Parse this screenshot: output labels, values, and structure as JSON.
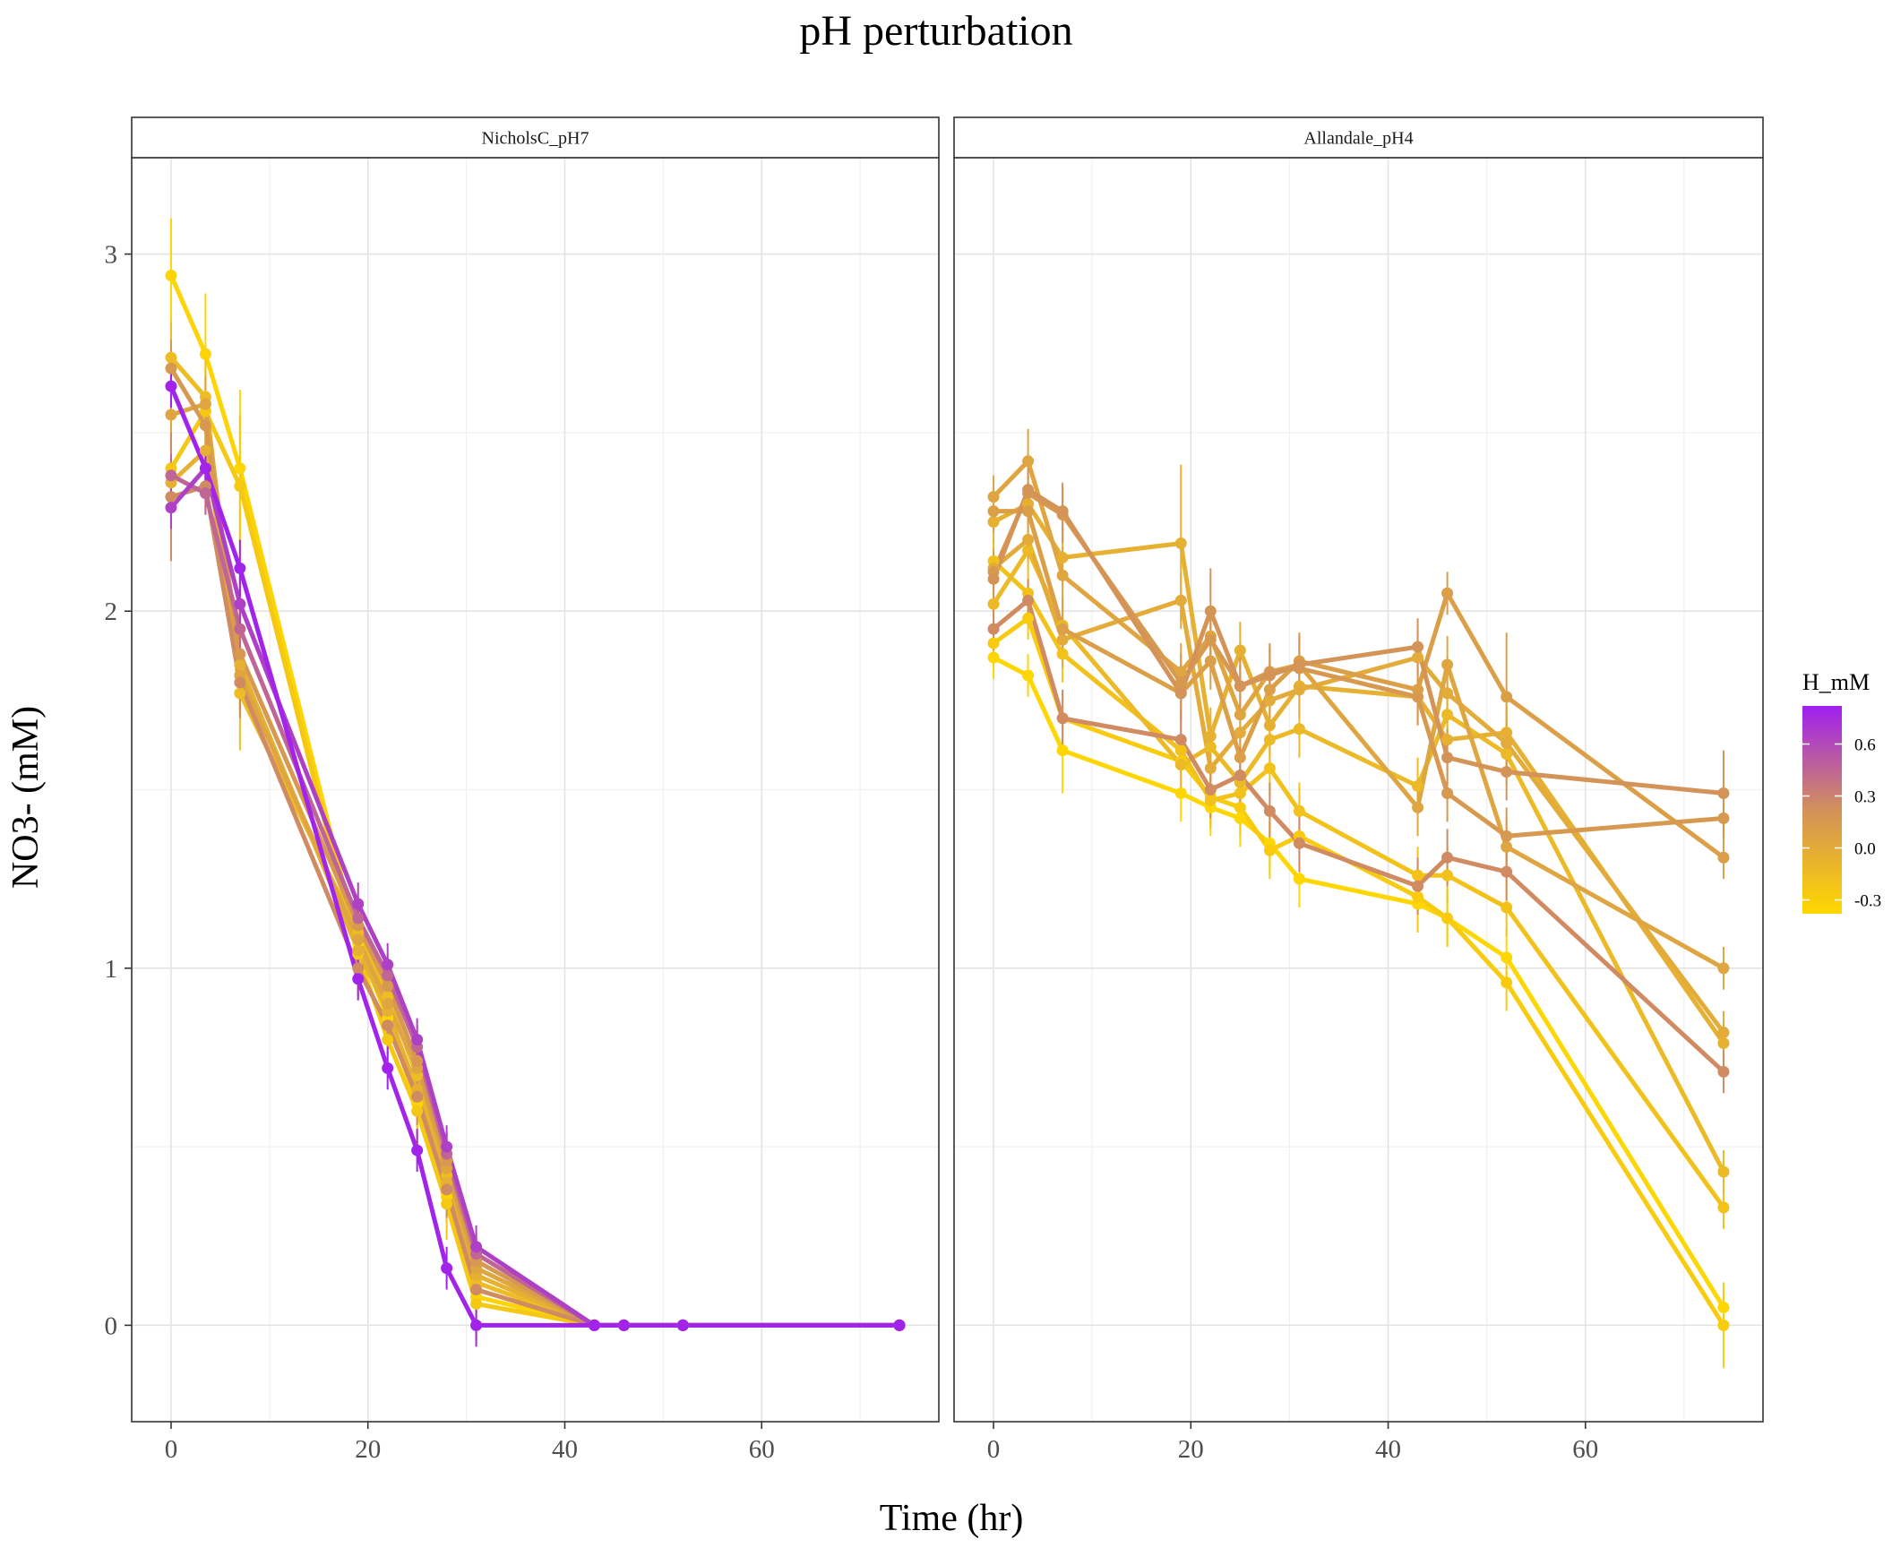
{
  "chart_data": {
    "type": "line",
    "title": "pH perturbation",
    "xlabel": "Time (hr)",
    "ylabel": "NO3- (mM)",
    "xlim": [
      -4,
      78
    ],
    "ylim": [
      -0.27,
      3.27
    ],
    "x_ticks": [
      0,
      20,
      40,
      60
    ],
    "y_ticks": [
      0,
      1,
      2,
      3
    ],
    "grid": true,
    "legend": {
      "title": "H_mM",
      "position": "right",
      "type": "colorbar",
      "range": [
        -0.38,
        0.82
      ],
      "ticks": [
        -0.3,
        0.0,
        0.3,
        0.6
      ],
      "tick_labels": [
        "-0.3",
        "0.0",
        "0.3",
        "0.6"
      ],
      "low_color": "#FFD700",
      "mid_color": "#D2915A",
      "high_color": "#A020F0"
    },
    "facets": [
      {
        "name": "NicholsC_pH7",
        "series": [
          {
            "h": -0.35,
            "x": [
              0,
              3.5,
              7,
              19,
              22,
              25,
              28,
              31,
              43,
              46,
              52,
              74
            ],
            "y": [
              2.94,
              2.72,
              2.4,
              1.07,
              0.86,
              0.62,
              0.36,
              0.08,
              0,
              0,
              0,
              0
            ],
            "err": [
              0.16,
              0.17,
              0.22,
              0.1,
              0.1,
              0.12,
              0.12,
              0.12,
              0,
              0,
              0,
              0
            ]
          },
          {
            "h": -0.25,
            "x": [
              0,
              3.5,
              7,
              19,
              22,
              25,
              28,
              31,
              43,
              46,
              52,
              74
            ],
            "y": [
              2.4,
              2.56,
              2.35,
              1.04,
              0.8,
              0.6,
              0.34,
              0.06,
              0,
              0,
              0,
              0
            ],
            "err": [
              0.1,
              0.12,
              0.2,
              0.1,
              0.1,
              0.1,
              0.1,
              0.1,
              0,
              0,
              0,
              0
            ]
          },
          {
            "h": -0.15,
            "x": [
              0,
              3.5,
              7,
              19,
              22,
              25,
              28,
              31,
              43,
              46,
              52,
              74
            ],
            "y": [
              2.71,
              2.6,
              1.77,
              1.1,
              0.92,
              0.7,
              0.42,
              0.12,
              0,
              0,
              0,
              0
            ],
            "err": [
              0.1,
              0.12,
              0.16,
              0.1,
              0.1,
              0.1,
              0.1,
              0.1,
              0,
              0,
              0,
              0
            ]
          },
          {
            "h": -0.05,
            "x": [
              0,
              3.5,
              7,
              19,
              22,
              25,
              28,
              31,
              43,
              46,
              52,
              74
            ],
            "y": [
              2.36,
              2.45,
              1.85,
              1.05,
              0.88,
              0.66,
              0.4,
              0.14,
              0,
              0,
              0,
              0
            ],
            "err": [
              0.08,
              0.08,
              0.1,
              0.08,
              0.08,
              0.08,
              0.08,
              0.08,
              0,
              0,
              0,
              0
            ]
          },
          {
            "h": 0.05,
            "x": [
              0,
              3.5,
              7,
              19,
              22,
              25,
              28,
              31,
              43,
              46,
              52,
              74
            ],
            "y": [
              2.55,
              2.58,
              1.82,
              1.08,
              0.9,
              0.72,
              0.44,
              0.16,
              0,
              0,
              0,
              0
            ],
            "err": [
              0.08,
              0.08,
              0.1,
              0.08,
              0.08,
              0.08,
              0.08,
              0.08,
              0,
              0,
              0,
              0
            ]
          },
          {
            "h": 0.15,
            "x": [
              0,
              3.5,
              7,
              19,
              22,
              25,
              28,
              31,
              43,
              46,
              52,
              74
            ],
            "y": [
              2.68,
              2.52,
              1.88,
              1.12,
              0.95,
              0.74,
              0.46,
              0.18,
              0,
              0,
              0,
              0
            ],
            "err": [
              0.08,
              0.08,
              0.1,
              0.08,
              0.08,
              0.08,
              0.08,
              0.08,
              0,
              0,
              0,
              0
            ]
          },
          {
            "h": 0.25,
            "x": [
              0,
              3.5,
              7,
              19,
              22,
              25,
              28,
              31,
              43,
              46,
              52,
              74
            ],
            "y": [
              2.32,
              2.35,
              1.8,
              1.0,
              0.84,
              0.64,
              0.38,
              0.1,
              0,
              0,
              0,
              0
            ],
            "err": [
              0.18,
              0.08,
              0.1,
              0.08,
              0.08,
              0.08,
              0.08,
              0.08,
              0,
              0,
              0,
              0
            ]
          },
          {
            "h": 0.45,
            "x": [
              0,
              3.5,
              7,
              19,
              22,
              25,
              28,
              31,
              43,
              46,
              52,
              74
            ],
            "y": [
              2.38,
              2.33,
              1.95,
              1.14,
              0.98,
              0.78,
              0.48,
              0.2,
              0,
              0,
              0,
              0
            ],
            "err": [
              0.06,
              0.06,
              0.08,
              0.06,
              0.06,
              0.06,
              0.06,
              0.06,
              0,
              0,
              0,
              0
            ]
          },
          {
            "h": 0.65,
            "x": [
              0,
              3.5,
              7,
              19,
              22,
              25,
              28,
              31,
              43,
              46,
              52,
              74
            ],
            "y": [
              2.29,
              2.4,
              2.02,
              1.18,
              1.01,
              0.8,
              0.5,
              0.22,
              0,
              0,
              0,
              0
            ],
            "err": [
              0.06,
              0.06,
              0.08,
              0.06,
              0.06,
              0.06,
              0.06,
              0.06,
              0,
              0,
              0,
              0
            ]
          },
          {
            "h": 0.8,
            "x": [
              0,
              3.5,
              7,
              19,
              22,
              25,
              28,
              31,
              43,
              46,
              52,
              74
            ],
            "y": [
              2.63,
              2.4,
              2.12,
              0.97,
              0.72,
              0.49,
              0.16,
              0.0,
              0,
              0,
              0,
              0
            ],
            "err": [
              0.06,
              0.06,
              0.08,
              0.06,
              0.06,
              0.06,
              0.06,
              0.06,
              0,
              0,
              0,
              0
            ]
          }
        ]
      },
      {
        "name": "Allandale_pH4",
        "series": [
          {
            "h": -0.37,
            "x": [
              0,
              3.5,
              7,
              19,
              22,
              25,
              28,
              31,
              43,
              46,
              52,
              74
            ],
            "y": [
              1.87,
              1.82,
              1.61,
              1.49,
              1.45,
              1.42,
              1.35,
              1.25,
              1.18,
              1.14,
              1.03,
              0.05
            ],
            "err": [
              0.06,
              0.06,
              0.12,
              0.08,
              0.08,
              0.08,
              0.08,
              0.08,
              0.08,
              0.08,
              0.08,
              0.04
            ]
          },
          {
            "h": -0.28,
            "x": [
              0,
              3.5,
              7,
              19,
              22,
              25,
              28,
              31,
              43,
              46,
              52,
              74
            ],
            "y": [
              1.91,
              1.98,
              1.7,
              1.58,
              1.48,
              1.45,
              1.33,
              1.37,
              1.2,
              1.14,
              0.96,
              0.0
            ],
            "err": [
              0.06,
              0.06,
              0.08,
              0.08,
              0.08,
              0.08,
              0.08,
              0.08,
              0.1,
              0.08,
              0.08,
              0.12
            ]
          },
          {
            "h": -0.2,
            "x": [
              0,
              3.5,
              7,
              19,
              22,
              25,
              28,
              31,
              43,
              46,
              52,
              74
            ],
            "y": [
              2.14,
              2.05,
              1.88,
              1.61,
              1.47,
              1.49,
              1.56,
              1.44,
              1.26,
              1.26,
              1.17,
              0.33
            ],
            "err": [
              0.06,
              0.06,
              0.08,
              0.08,
              0.08,
              0.08,
              0.08,
              0.08,
              0.08,
              0.08,
              0.08,
              0.06
            ]
          },
          {
            "h": -0.12,
            "x": [
              0,
              3.5,
              7,
              19,
              22,
              25,
              28,
              31,
              43,
              46,
              52,
              74
            ],
            "y": [
              2.02,
              2.17,
              1.96,
              1.57,
              1.62,
              1.52,
              1.64,
              1.67,
              1.51,
              1.71,
              1.6,
              0.43
            ],
            "err": [
              0.06,
              0.06,
              0.08,
              0.08,
              0.08,
              0.08,
              0.08,
              0.08,
              0.08,
              0.08,
              0.08,
              0.06
            ]
          },
          {
            "h": -0.05,
            "x": [
              0,
              3.5,
              7,
              19,
              22,
              25,
              28,
              31,
              43,
              46,
              52,
              74
            ],
            "y": [
              2.25,
              2.3,
              2.15,
              2.19,
              1.65,
              1.89,
              1.68,
              1.79,
              1.76,
              1.64,
              1.66,
              0.79
            ],
            "err": [
              0.06,
              0.06,
              0.08,
              0.22,
              0.08,
              0.08,
              0.08,
              0.08,
              0.08,
              0.08,
              0.08,
              0.06
            ]
          },
          {
            "h": 0.0,
            "x": [
              0,
              3.5,
              7,
              19,
              22,
              25,
              28,
              31,
              43,
              46,
              52,
              74
            ],
            "y": [
              2.12,
              2.2,
              1.92,
              2.03,
              1.56,
              1.66,
              1.75,
              1.78,
              1.87,
              1.77,
              1.63,
              0.82
            ],
            "err": [
              0.06,
              0.06,
              0.08,
              0.08,
              0.08,
              0.08,
              0.08,
              0.08,
              0.08,
              0.08,
              0.08,
              0.06
            ]
          },
          {
            "h": 0.05,
            "x": [
              0,
              3.5,
              7,
              19,
              22,
              25,
              28,
              31,
              43,
              46,
              52,
              74
            ],
            "y": [
              2.32,
              2.42,
              2.1,
              1.83,
              1.93,
              1.71,
              1.83,
              1.85,
              1.45,
              1.85,
              1.34,
              1.0
            ],
            "err": [
              0.06,
              0.09,
              0.08,
              0.08,
              0.08,
              0.08,
              0.08,
              0.08,
              0.08,
              0.08,
              0.08,
              0.06
            ]
          },
          {
            "h": 0.1,
            "x": [
              0,
              3.5,
              7,
              19,
              22,
              25,
              28,
              31,
              43,
              46,
              52,
              74
            ],
            "y": [
              2.28,
              2.28,
              1.95,
              1.77,
              1.86,
              1.59,
              1.78,
              1.86,
              1.78,
              2.05,
              1.76,
              1.31
            ],
            "err": [
              0.06,
              0.06,
              0.08,
              0.08,
              0.08,
              0.08,
              0.08,
              0.08,
              0.08,
              0.06,
              0.18,
              0.06
            ]
          },
          {
            "h": 0.15,
            "x": [
              0,
              3.5,
              7,
              19,
              22,
              25,
              28,
              31,
              43,
              46,
              52,
              74
            ],
            "y": [
              2.11,
              2.33,
              2.27,
              1.8,
              1.92,
              1.79,
              1.83,
              1.84,
              1.76,
              1.49,
              1.37,
              1.42
            ],
            "err": [
              0.06,
              0.06,
              0.08,
              0.08,
              0.08,
              0.08,
              0.08,
              0.08,
              0.08,
              0.08,
              0.08,
              0.06
            ]
          },
          {
            "h": 0.2,
            "x": [
              0,
              3.5,
              7,
              19,
              22,
              25,
              28,
              31,
              43,
              46,
              52,
              74
            ],
            "y": [
              2.09,
              2.34,
              2.28,
              1.77,
              2.0,
              1.79,
              1.82,
              1.85,
              1.9,
              1.59,
              1.55,
              1.49
            ],
            "err": [
              0.06,
              0.06,
              0.08,
              0.08,
              0.12,
              0.08,
              0.08,
              0.08,
              0.08,
              0.08,
              0.08,
              0.12
            ]
          },
          {
            "h": 0.25,
            "x": [
              0,
              3.5,
              7,
              19,
              22,
              25,
              28,
              31,
              43,
              46,
              52,
              74
            ],
            "y": [
              1.95,
              2.03,
              1.7,
              1.64,
              1.5,
              1.54,
              1.44,
              1.35,
              1.23,
              1.31,
              1.27,
              0.71
            ],
            "err": [
              0.06,
              0.06,
              0.08,
              0.08,
              0.08,
              0.08,
              0.08,
              0.08,
              0.08,
              0.08,
              0.08,
              0.06
            ]
          }
        ]
      }
    ]
  }
}
